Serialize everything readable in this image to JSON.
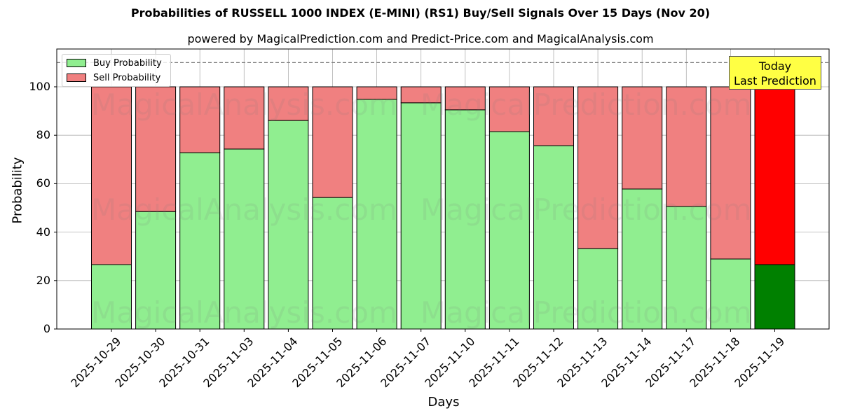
{
  "header": {
    "title": "Probabilities of RUSSELL 1000 INDEX (E-MINI) (RS1) Buy/Sell Signals Over 15 Days (Nov 20)",
    "subtitle": "powered by MagicalPrediction.com and Predict-Price.com and MagicalAnalysis.com"
  },
  "legend": {
    "items": [
      {
        "label": "Buy Probability",
        "color": "#90ee90"
      },
      {
        "label": "Sell Probability",
        "color": "#f08080"
      }
    ]
  },
  "annotation": {
    "line1": "Today",
    "line2": "Last Prediction"
  },
  "axes": {
    "ylabel": "Probability",
    "xlabel": "Days",
    "yticks": [
      "0",
      "20",
      "40",
      "60",
      "80",
      "100"
    ]
  },
  "watermarks": [
    "MagicalAnalysis.com",
    "MagicalPrediction.com"
  ],
  "colors": {
    "buy": "#90ee90",
    "sell": "#f08080",
    "buy_today": "#008000",
    "sell_today": "#ff0000",
    "today_box": "#ffff44"
  },
  "chart_data": {
    "type": "bar",
    "stacked": true,
    "title": "Probabilities of RUSSELL 1000 INDEX (E-MINI) (RS1) Buy/Sell Signals Over 15 Days (Nov 20)",
    "subtitle": "powered by MagicalPrediction.com and Predict-Price.com and MagicalAnalysis.com",
    "xlabel": "Days",
    "ylabel": "Probability",
    "ylim": [
      0,
      115
    ],
    "yticks": [
      0,
      20,
      40,
      60,
      80,
      100
    ],
    "grid": true,
    "legend_position": "upper left",
    "reference_line": {
      "y": 110,
      "style": "dashed"
    },
    "categories": [
      "2025-10-29",
      "2025-10-30",
      "2025-10-31",
      "2025-11-03",
      "2025-11-04",
      "2025-11-05",
      "2025-11-06",
      "2025-11-07",
      "2025-11-10",
      "2025-11-11",
      "2025-11-12",
      "2025-11-13",
      "2025-11-14",
      "2025-11-17",
      "2025-11-18",
      "2025-11-19"
    ],
    "series": [
      {
        "name": "Buy Probability",
        "values": [
          26.6,
          48.5,
          72.8,
          74.3,
          86.1,
          54.3,
          94.8,
          93.4,
          90.5,
          81.5,
          75.7,
          33.2,
          57.8,
          50.6,
          28.9,
          26.6
        ]
      },
      {
        "name": "Sell Probability",
        "values": [
          73.4,
          51.5,
          27.2,
          25.7,
          13.9,
          45.7,
          5.2,
          6.6,
          9.5,
          18.5,
          24.3,
          66.8,
          42.2,
          49.4,
          71.1,
          73.4
        ]
      }
    ],
    "highlight": {
      "index": 15,
      "label": "Today Last Prediction",
      "buy_color": "#008000",
      "sell_color": "#ff0000"
    }
  }
}
